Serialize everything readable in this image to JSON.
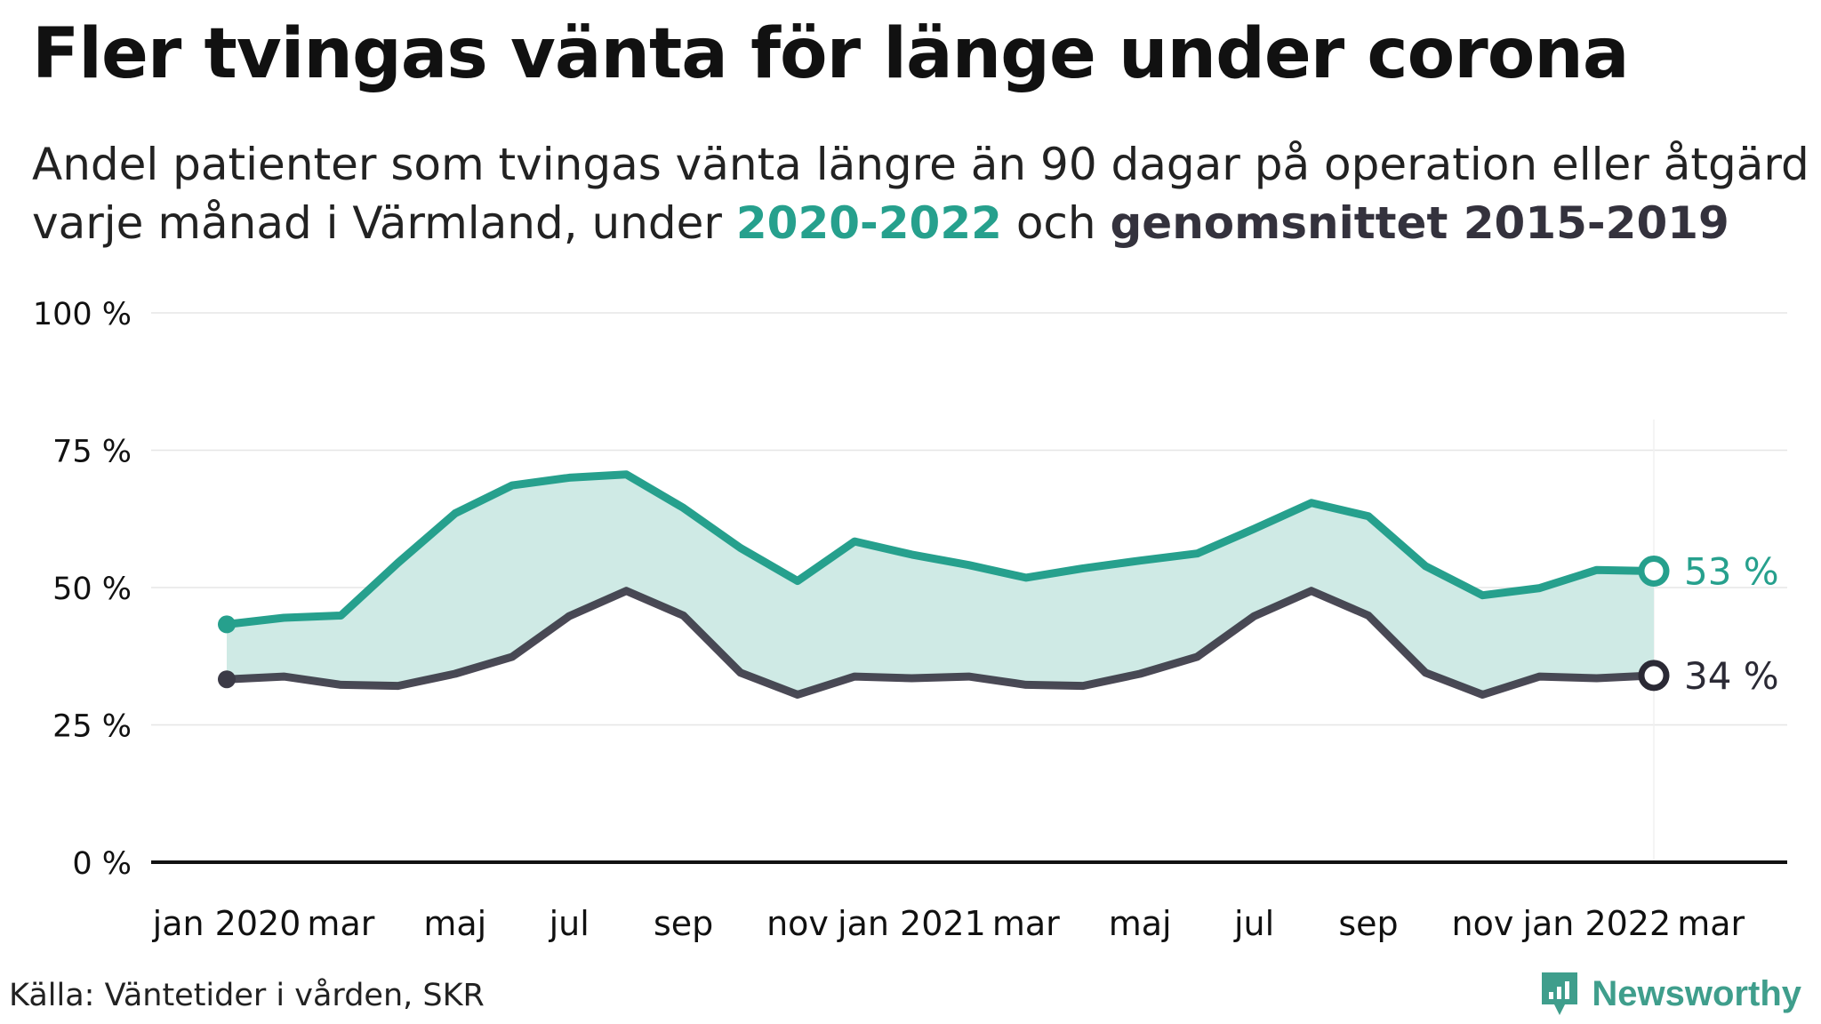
{
  "title": "Fler tvingas vänta för länge under corona",
  "subtitle": {
    "line1": "Andel patienter som tvingas vänta längre än 90 dagar på operation eller åtgärd",
    "line2_start": "varje månad i Värmland, under ",
    "highlight_current": "2020-2022",
    "line2_middle": " och ",
    "highlight_average": "genomsnittet 2015-2019"
  },
  "colors": {
    "current": "#26a08d",
    "average": "#3b3a46",
    "area": "#cfeae5",
    "grid": "#e6e6e6",
    "axis": "#111111"
  },
  "chart_data": {
    "type": "line",
    "x": [
      "2020-01",
      "2020-02",
      "2020-03",
      "2020-04",
      "2020-05",
      "2020-06",
      "2020-07",
      "2020-08",
      "2020-09",
      "2020-10",
      "2020-11",
      "2020-12",
      "2021-01",
      "2021-02",
      "2021-03",
      "2021-04",
      "2021-05",
      "2021-06",
      "2021-07",
      "2021-08",
      "2021-09",
      "2021-10",
      "2021-11",
      "2021-12",
      "2022-01",
      "2022-02"
    ],
    "x_tick_labels": [
      "jan 2020",
      "mar",
      "maj",
      "jul",
      "sep",
      "nov",
      "jan 2021",
      "mar",
      "maj",
      "jul",
      "sep",
      "nov",
      "jan 2022",
      "mar"
    ],
    "series": [
      {
        "name": "2020-2022",
        "values": [
          43.3,
          44.5,
          44.9,
          54.5,
          63.5,
          68.6,
          70,
          70.6,
          64.5,
          57.2,
          51.2,
          58.4,
          56,
          54.1,
          51.8,
          53.5,
          54.9,
          56.2,
          60.7,
          65.4,
          63,
          53.9,
          48.6,
          49.9,
          53.2,
          53
        ]
      },
      {
        "name": "genomsnittet 2015-2019",
        "values": [
          33.3,
          33.8,
          32.3,
          32.1,
          34.3,
          37.4,
          44.8,
          49.4,
          44.9,
          34.5,
          30.5,
          33.8,
          33.5,
          33.8,
          32.3,
          32.1,
          34.3,
          37.4,
          44.8,
          49.4,
          44.9,
          34.5,
          30.5,
          33.8,
          33.5,
          34
        ]
      }
    ],
    "end_labels": [
      "53 %",
      "34 %"
    ],
    "yticks": [
      0,
      25,
      50,
      75,
      100
    ],
    "ytick_labels": [
      "0 %",
      "25 %",
      "50 %",
      "75 %",
      "100 %"
    ],
    "ylim": [
      0,
      100
    ],
    "grid": true,
    "xlabel": "",
    "ylabel": ""
  },
  "source": "Källa: Väntetider i vården, SKR",
  "brand": "Newsworthy"
}
